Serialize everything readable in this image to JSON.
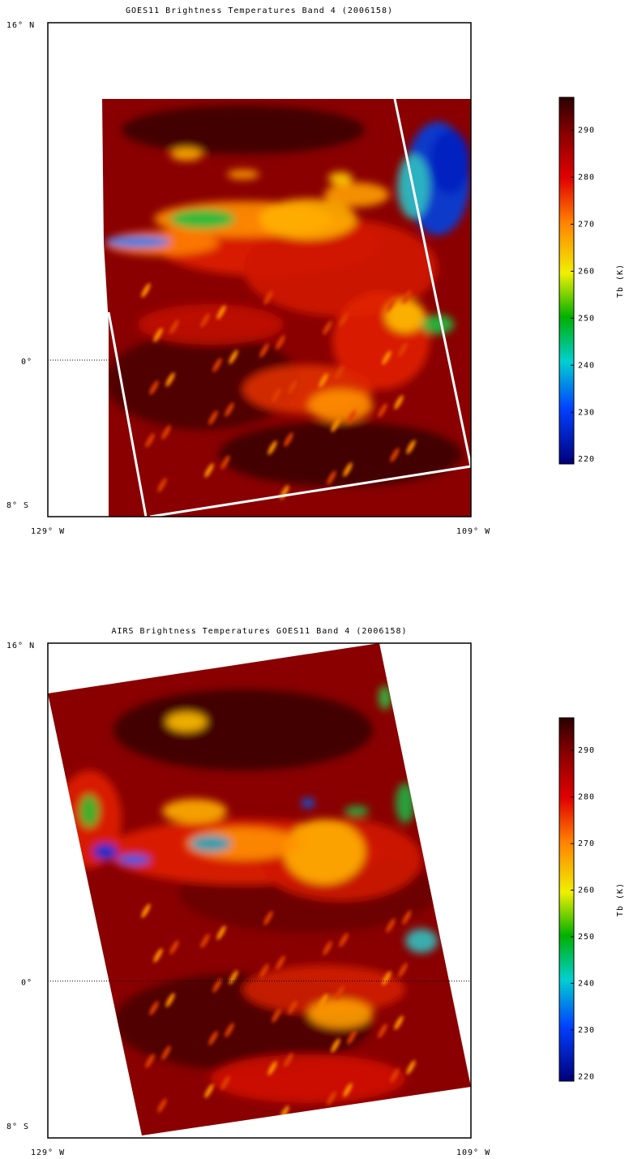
{
  "panels": [
    {
      "title": "GOES11 Brightness Temperatures Band 4 (2006158)",
      "lat_labels": [
        "16° N",
        "0°",
        "8° S"
      ],
      "lon_labels": [
        "129° W",
        "109° W"
      ],
      "colorbar": {
        "label": "Tb (K)",
        "ticks": [
          220,
          230,
          240,
          250,
          260,
          270,
          280,
          290
        ],
        "range": [
          219,
          297
        ]
      }
    },
    {
      "title": "AIRS Brightness Temperatures GOES11 Band 4 (2006158)",
      "lat_labels": [
        "16° N",
        "0°",
        "8° S"
      ],
      "lon_labels": [
        "129° W",
        "109° W"
      ],
      "colorbar": {
        "label": "Tb (K)",
        "ticks": [
          220,
          230,
          240,
          250,
          260,
          270,
          280,
          290
        ],
        "range": [
          219,
          297
        ]
      }
    }
  ]
}
